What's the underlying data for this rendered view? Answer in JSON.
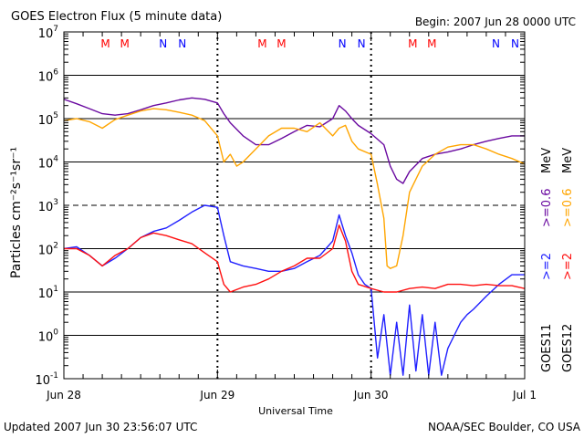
{
  "header": {
    "title": "GOES Electron Flux (5 minute data)",
    "begin": "Begin: 2007 Jun 28 0000 UTC"
  },
  "footer": {
    "updated": "Updated 2007 Jun 30 23:56:07 UTC",
    "credit": "NOAA/SEC Boulder, CO USA"
  },
  "colors": {
    "goes11_gt2": "#2020ff",
    "goes12_gt2": "#ff1010",
    "goes11_gt06": "#6a0aa0",
    "goes12_gt06": "#ffa500",
    "marker_M": "#ff0000",
    "marker_N": "#0000ff"
  },
  "right_labels": {
    "gt2": ">=2",
    "gt06": ">=0.6",
    "unit1": "MeV",
    "unit2": "MeV",
    "sat1": "GOES11",
    "sat2": "GOES12"
  },
  "chart_data": {
    "type": "line",
    "xlabel": "Universal Time",
    "ylabel": "Particles cm⁻²s⁻¹sr⁻¹",
    "yscale": "log",
    "ylim": [
      0.1,
      10000000
    ],
    "xlim": [
      0,
      72
    ],
    "x_unit": "hours since 2007 Jun 28 0000 UTC",
    "x_ticks": [
      {
        "x": 0,
        "label": "Jun 28"
      },
      {
        "x": 24,
        "label": "Jun 29"
      },
      {
        "x": 48,
        "label": "Jun 30"
      },
      {
        "x": 72,
        "label": "Jul 1"
      }
    ],
    "y_ticks": [
      {
        "v": 0.1,
        "base": "10",
        "exp": "-1"
      },
      {
        "v": 1,
        "base": "10",
        "exp": "0"
      },
      {
        "v": 10,
        "base": "10",
        "exp": "1"
      },
      {
        "v": 100,
        "base": "10",
        "exp": "2"
      },
      {
        "v": 1000,
        "base": "10",
        "exp": "3"
      },
      {
        "v": 10000,
        "base": "10",
        "exp": "4"
      },
      {
        "v": 100000,
        "base": "10",
        "exp": "5"
      },
      {
        "v": 1000000,
        "base": "10",
        "exp": "6"
      },
      {
        "v": 10000000,
        "base": "10",
        "exp": "7"
      }
    ],
    "day_boundaries": [
      24,
      48
    ],
    "dashed_hlines": [
      1000
    ],
    "markers": [
      {
        "x": 6.5,
        "label": "M",
        "color": "marker_M"
      },
      {
        "x": 9.5,
        "label": "M",
        "color": "marker_M"
      },
      {
        "x": 15.5,
        "label": "N",
        "color": "marker_N"
      },
      {
        "x": 18.5,
        "label": "N",
        "color": "marker_N"
      },
      {
        "x": 31.0,
        "label": "M",
        "color": "marker_M"
      },
      {
        "x": 34.0,
        "label": "M",
        "color": "marker_M"
      },
      {
        "x": 43.5,
        "label": "N",
        "color": "marker_N"
      },
      {
        "x": 46.5,
        "label": "N",
        "color": "marker_N"
      },
      {
        "x": 54.5,
        "label": "M",
        "color": "marker_M"
      },
      {
        "x": 57.5,
        "label": "M",
        "color": "marker_M"
      },
      {
        "x": 67.5,
        "label": "N",
        "color": "marker_N"
      },
      {
        "x": 70.5,
        "label": "N",
        "color": "marker_N"
      }
    ],
    "series": [
      {
        "name": "GOES11 >=0.6 MeV",
        "color": "goes11_gt06",
        "x": [
          0,
          2,
          4,
          6,
          8,
          10,
          12,
          14,
          16,
          18,
          20,
          22,
          24,
          25,
          26,
          28,
          30,
          32,
          34,
          36,
          38,
          40,
          42,
          43,
          44,
          45,
          46,
          48,
          50,
          51,
          52,
          53,
          54,
          56,
          58,
          60,
          62,
          64,
          66,
          68,
          70,
          72
        ],
        "y": [
          280000,
          220000,
          170000,
          130000,
          120000,
          130000,
          160000,
          200000,
          230000,
          270000,
          300000,
          280000,
          230000,
          130000,
          80000,
          40000,
          25000,
          25000,
          35000,
          50000,
          70000,
          65000,
          100000,
          200000,
          150000,
          100000,
          70000,
          45000,
          25000,
          8000,
          4000,
          3200,
          6000,
          12000,
          15000,
          17000,
          20000,
          25000,
          30000,
          35000,
          40000,
          40000
        ]
      },
      {
        "name": "GOES12 >=0.6 MeV",
        "color": "goes12_gt06",
        "x": [
          0,
          2,
          4,
          6,
          8,
          10,
          12,
          14,
          16,
          18,
          20,
          22,
          24,
          25,
          26,
          27,
          28,
          30,
          32,
          34,
          36,
          38,
          40,
          42,
          43,
          44,
          45,
          46,
          48,
          49,
          50,
          50.5,
          51,
          52,
          53,
          54,
          56,
          58,
          60,
          62,
          64,
          66,
          68,
          70,
          72
        ],
        "y": [
          90000,
          100000,
          85000,
          60000,
          95000,
          120000,
          150000,
          170000,
          160000,
          140000,
          120000,
          90000,
          40000,
          10000,
          15000,
          8000,
          10000,
          20000,
          40000,
          60000,
          60000,
          50000,
          80000,
          40000,
          60000,
          70000,
          30000,
          20000,
          15000,
          3000,
          500,
          40,
          35,
          40,
          200,
          2000,
          8000,
          15000,
          22000,
          25000,
          25000,
          20000,
          15000,
          12000,
          9000
        ]
      },
      {
        "name": "GOES11 >=2 MeV",
        "color": "goes11_gt2",
        "x": [
          0,
          2,
          4,
          6,
          8,
          10,
          12,
          14,
          16,
          18,
          20,
          22,
          24,
          25,
          26,
          28,
          30,
          32,
          34,
          36,
          38,
          40,
          42,
          43,
          44,
          45,
          46,
          47,
          48,
          49,
          50,
          51,
          52,
          53,
          54,
          55,
          56,
          57,
          58,
          59,
          60,
          61,
          62,
          63,
          64,
          66,
          68,
          70,
          72
        ],
        "y": [
          100,
          110,
          70,
          40,
          60,
          100,
          180,
          250,
          300,
          450,
          700,
          1000,
          900,
          200,
          50,
          40,
          35,
          30,
          30,
          35,
          50,
          70,
          150,
          600,
          200,
          80,
          25,
          15,
          12,
          0.3,
          3,
          0.12,
          2,
          0.12,
          5,
          0.15,
          3,
          0.12,
          2,
          0.12,
          0.5,
          1,
          2,
          3,
          4,
          8,
          15,
          25,
          25
        ]
      },
      {
        "name": "GOES12 >=2 MeV",
        "color": "goes12_gt2",
        "x": [
          0,
          2,
          4,
          6,
          8,
          10,
          12,
          14,
          16,
          18,
          20,
          22,
          24,
          25,
          26,
          28,
          30,
          32,
          34,
          36,
          38,
          40,
          42,
          43,
          44,
          45,
          46,
          48,
          50,
          52,
          54,
          56,
          58,
          60,
          62,
          64,
          66,
          68,
          70,
          72
        ],
        "y": [
          100,
          100,
          70,
          40,
          70,
          100,
          180,
          230,
          200,
          160,
          130,
          80,
          50,
          15,
          10,
          13,
          15,
          20,
          30,
          40,
          60,
          60,
          100,
          350,
          150,
          30,
          15,
          12,
          10,
          10,
          12,
          13,
          12,
          15,
          15,
          14,
          15,
          14,
          14,
          12
        ]
      }
    ]
  }
}
